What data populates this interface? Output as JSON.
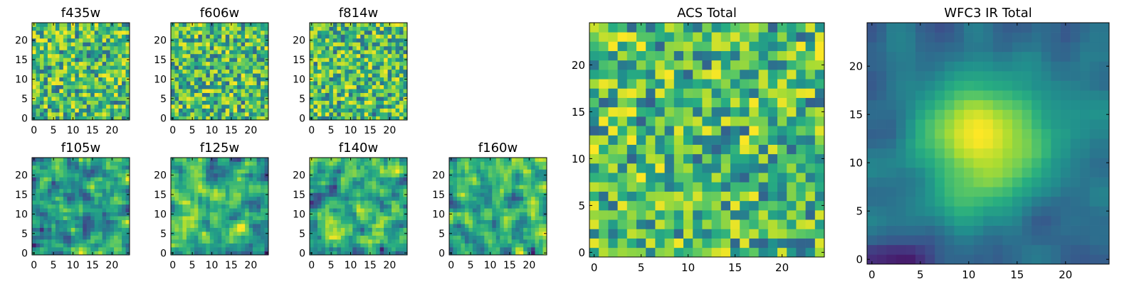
{
  "figure": {
    "description": "Grid of image-cutout heatmaps for individual HST filters and ACS / WFC3 IR totals"
  },
  "chart_data": [
    {
      "type": "heatmap",
      "title": "f435w",
      "grid_size": 25,
      "x_ticks": [
        "0",
        "5",
        "10",
        "15",
        "20"
      ],
      "y_ticks": [
        "0",
        "5",
        "10",
        "15",
        "20"
      ],
      "xlim": [
        -0.5,
        24.5
      ],
      "ylim": [
        -0.5,
        24.5
      ],
      "pattern": "noise",
      "seed": 11
    },
    {
      "type": "heatmap",
      "title": "f606w",
      "grid_size": 25,
      "x_ticks": [
        "0",
        "5",
        "10",
        "15",
        "20"
      ],
      "y_ticks": [
        "0",
        "5",
        "10",
        "15",
        "20"
      ],
      "xlim": [
        -0.5,
        24.5
      ],
      "ylim": [
        -0.5,
        24.5
      ],
      "pattern": "noise",
      "seed": 23
    },
    {
      "type": "heatmap",
      "title": "f814w",
      "grid_size": 25,
      "x_ticks": [
        "0",
        "5",
        "10",
        "15",
        "20"
      ],
      "y_ticks": [
        "0",
        "5",
        "10",
        "15",
        "20"
      ],
      "xlim": [
        -0.5,
        24.5
      ],
      "ylim": [
        -0.5,
        24.5
      ],
      "pattern": "noise",
      "seed": 37
    },
    {
      "type": "heatmap",
      "title": "f105w",
      "grid_size": 25,
      "x_ticks": [
        "0",
        "5",
        "10",
        "15",
        "20"
      ],
      "y_ticks": [
        "0",
        "5",
        "10",
        "15",
        "20"
      ],
      "xlim": [
        -0.5,
        24.5
      ],
      "ylim": [
        -0.5,
        24.5
      ],
      "pattern": "smooth",
      "seed": 41
    },
    {
      "type": "heatmap",
      "title": "f125w",
      "grid_size": 25,
      "x_ticks": [
        "0",
        "5",
        "10",
        "15",
        "20"
      ],
      "y_ticks": [
        "0",
        "5",
        "10",
        "15",
        "20"
      ],
      "xlim": [
        -0.5,
        24.5
      ],
      "ylim": [
        -0.5,
        24.5
      ],
      "pattern": "smooth",
      "seed": 53
    },
    {
      "type": "heatmap",
      "title": "f140w",
      "grid_size": 25,
      "x_ticks": [
        "0",
        "5",
        "10",
        "15",
        "20"
      ],
      "y_ticks": [
        "0",
        "5",
        "10",
        "15",
        "20"
      ],
      "xlim": [
        -0.5,
        24.5
      ],
      "ylim": [
        -0.5,
        24.5
      ],
      "pattern": "smooth",
      "seed": 67
    },
    {
      "type": "heatmap",
      "title": "f160w",
      "grid_size": 25,
      "x_ticks": [
        "0",
        "5",
        "10",
        "15",
        "20"
      ],
      "y_ticks": [
        "0",
        "5",
        "10",
        "15",
        "20"
      ],
      "xlim": [
        -0.5,
        24.5
      ],
      "ylim": [
        -0.5,
        24.5
      ],
      "pattern": "smooth",
      "seed": 79
    },
    {
      "type": "heatmap",
      "title": "ACS Total",
      "grid_size": 25,
      "x_ticks": [
        "0",
        "5",
        "10",
        "15",
        "20"
      ],
      "y_ticks": [
        "0",
        "5",
        "10",
        "15",
        "20"
      ],
      "xlim": [
        -0.5,
        24.5
      ],
      "ylim": [
        -0.5,
        24.5
      ],
      "pattern": "noise",
      "seed": 83
    },
    {
      "type": "heatmap",
      "title": "WFC3 IR Total",
      "grid_size": 25,
      "x_ticks": [
        "0",
        "5",
        "10",
        "15",
        "20"
      ],
      "y_ticks": [
        "0",
        "5",
        "10",
        "15",
        "20"
      ],
      "xlim": [
        -0.5,
        24.5
      ],
      "ylim": [
        -0.5,
        24.5
      ],
      "pattern": "blob",
      "seed": 97
    }
  ]
}
